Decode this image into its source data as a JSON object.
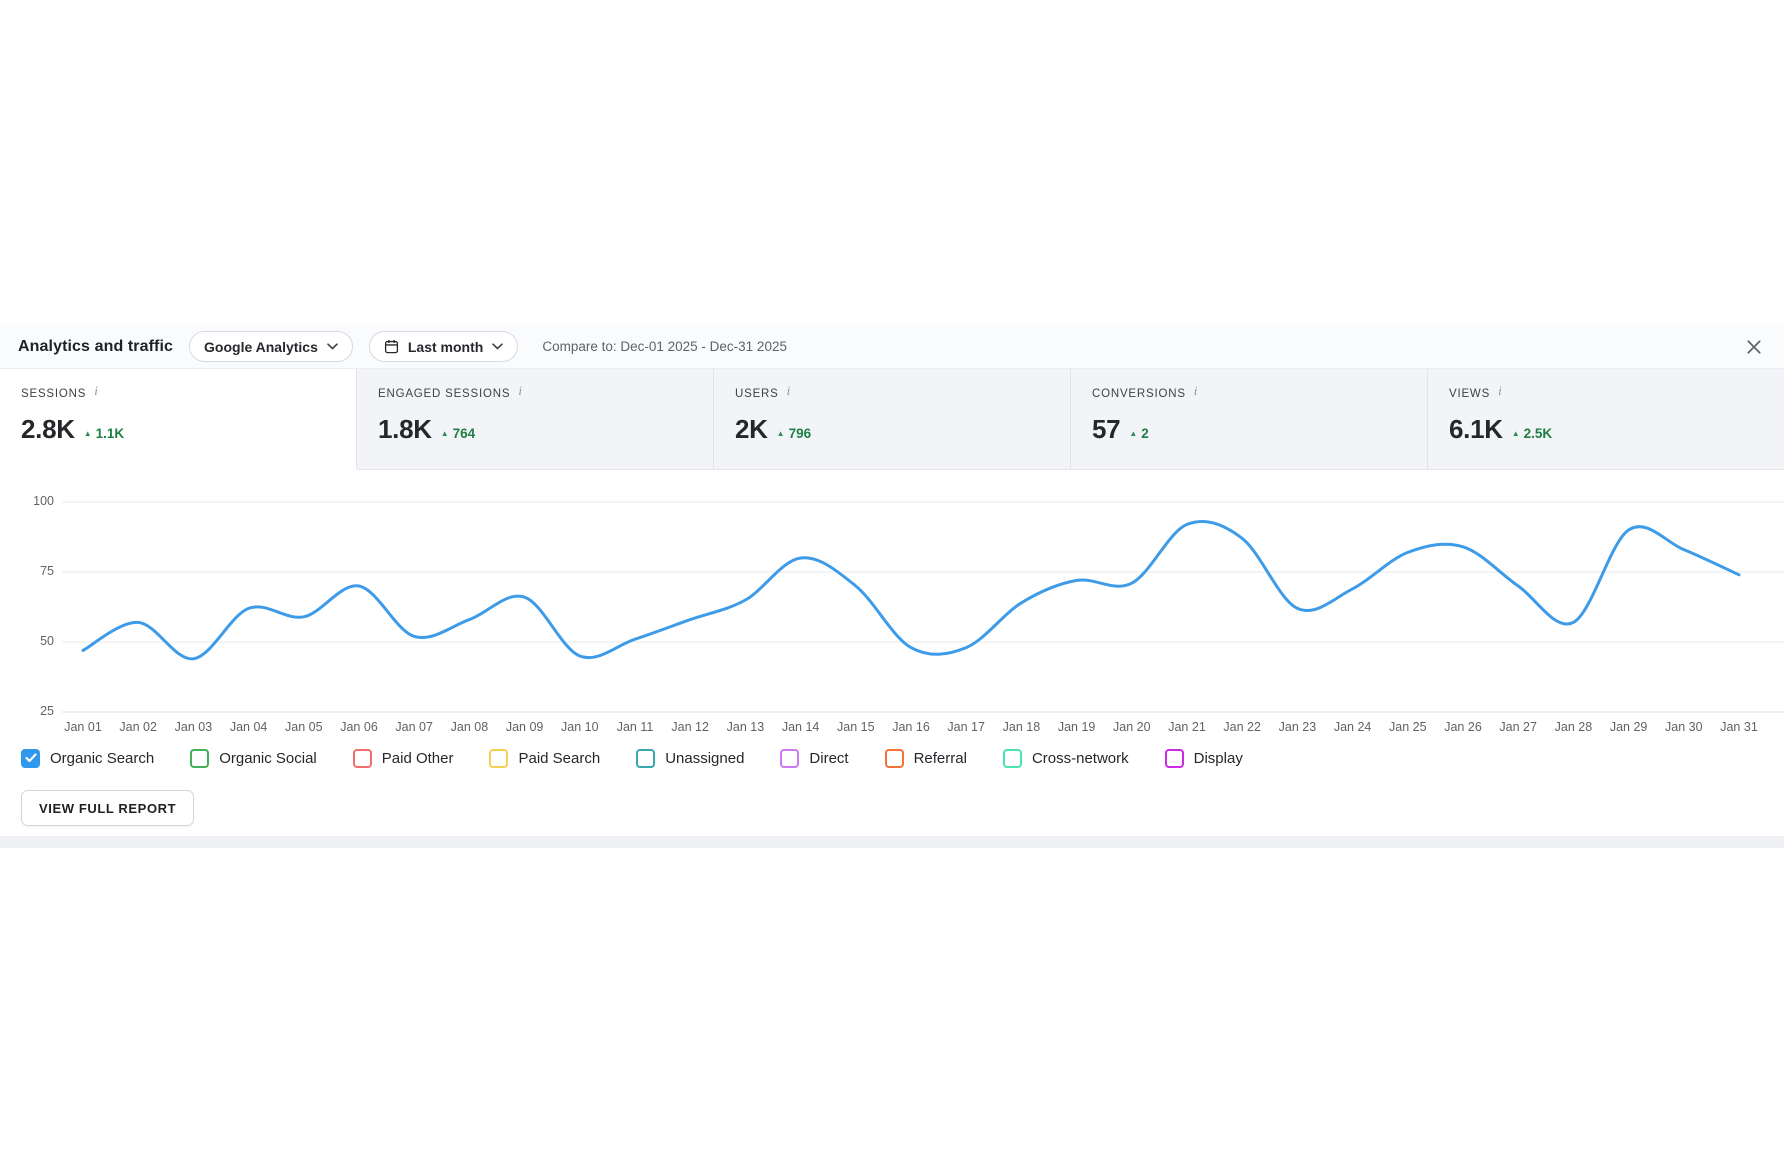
{
  "header": {
    "title": "Analytics and traffic",
    "source_dropdown": {
      "label": "Google Analytics"
    },
    "date_dropdown": {
      "label": "Last month"
    },
    "compare_text": "Compare to: Dec-01 2025 - Dec-31 2025"
  },
  "icons": {
    "info": "i",
    "delta_up": "▲"
  },
  "metrics": [
    {
      "label": "SESSIONS",
      "value": "2.8K",
      "delta": "1.1K",
      "selected": true
    },
    {
      "label": "ENGAGED SESSIONS",
      "value": "1.8K",
      "delta": "764",
      "selected": false
    },
    {
      "label": "USERS",
      "value": "2K",
      "delta": "796",
      "selected": false
    },
    {
      "label": "CONVERSIONS",
      "value": "57",
      "delta": "2",
      "selected": false
    },
    {
      "label": "VIEWS",
      "value": "6.1K",
      "delta": "2.5K",
      "selected": false
    }
  ],
  "chart_data": {
    "type": "line",
    "title": "",
    "xlabel": "",
    "ylabel": "",
    "x": [
      "Jan 01",
      "Jan 02",
      "Jan 03",
      "Jan 04",
      "Jan 05",
      "Jan 06",
      "Jan 07",
      "Jan 08",
      "Jan 09",
      "Jan 10",
      "Jan 11",
      "Jan 12",
      "Jan 13",
      "Jan 14",
      "Jan 15",
      "Jan 16",
      "Jan 17",
      "Jan 18",
      "Jan 19",
      "Jan 20",
      "Jan 21",
      "Jan 22",
      "Jan 23",
      "Jan 24",
      "Jan 25",
      "Jan 26",
      "Jan 27",
      "Jan 28",
      "Jan 29",
      "Jan 30",
      "Jan 31"
    ],
    "series": [
      {
        "name": "Organic Search",
        "color": "#3d9be8",
        "values": [
          47,
          57,
          44,
          62,
          59,
          70,
          52,
          58,
          66,
          45,
          51,
          58,
          65,
          80,
          70,
          48,
          48,
          64,
          72,
          71,
          92,
          87,
          62,
          69,
          82,
          84,
          70,
          57,
          90,
          83,
          74
        ]
      }
    ],
    "ylim": [
      25,
      100
    ],
    "yticks": [
      25,
      50,
      75,
      100
    ],
    "grid": true,
    "legend_position": "bottom"
  },
  "legend": {
    "items": [
      {
        "label": "Organic Search",
        "color": "#2f97ec",
        "checked": true
      },
      {
        "label": "Organic Social",
        "color": "#43b05c",
        "checked": false
      },
      {
        "label": "Paid Other",
        "color": "#f26d6d",
        "checked": false
      },
      {
        "label": "Paid Search",
        "color": "#f7cf54",
        "checked": false
      },
      {
        "label": "Unassigned",
        "color": "#3aa7b0",
        "checked": false
      },
      {
        "label": "Direct",
        "color": "#cd7af0",
        "checked": false
      },
      {
        "label": "Referral",
        "color": "#f8713a",
        "checked": false
      },
      {
        "label": "Cross-network",
        "color": "#4ae3b5",
        "checked": false
      },
      {
        "label": "Display",
        "color": "#ce29e8",
        "checked": false
      }
    ]
  },
  "footer": {
    "view_report_label": "VIEW FULL REPORT"
  }
}
